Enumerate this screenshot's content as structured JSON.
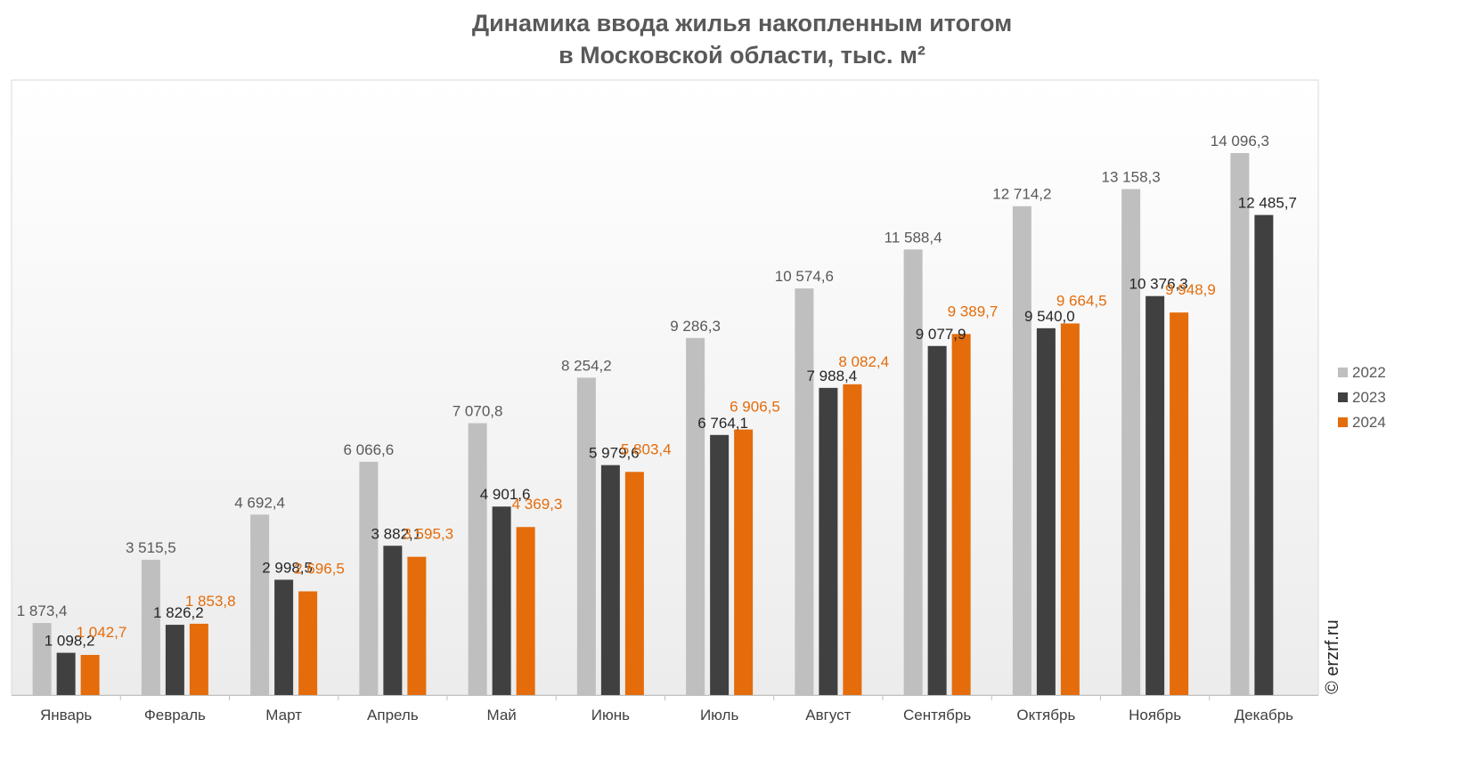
{
  "chart_data": {
    "type": "bar",
    "title_line1": "Динамика ввода жилья накопленным итогом",
    "title_line2": "в Московской области, тыс. м²",
    "categories": [
      "Январь",
      "Февраль",
      "Март",
      "Апрель",
      "Май",
      "Июнь",
      "Июль",
      "Август",
      "Сентябрь",
      "Октябрь",
      "Ноябрь",
      "Декабрь"
    ],
    "series": [
      {
        "name": "2022",
        "color": "#bfbfbf",
        "label_color": "#595959",
        "values": [
          1873.4,
          3515.5,
          4692.4,
          6066.6,
          7070.8,
          8254.2,
          9286.3,
          10574.6,
          11588.4,
          12714.2,
          13158.3,
          14096.3
        ],
        "labels": [
          "1 873,4",
          "3 515,5",
          "4 692,4",
          "6 066,6",
          "7 070,8",
          "8 254,2",
          "9 286,3",
          "10 574,6",
          "11 588,4",
          "12 714,2",
          "13 158,3",
          "14 096,3"
        ]
      },
      {
        "name": "2023",
        "color": "#404040",
        "label_color": "#262626",
        "values": [
          1098.2,
          1826.2,
          2998.5,
          3882.1,
          4901.6,
          5979.6,
          6764.1,
          7988.4,
          9077.9,
          9540.0,
          10376.3,
          12485.7
        ],
        "labels": [
          "1 098,2",
          "1 826,2",
          "2 998,5",
          "3 882,1",
          "4 901,6",
          "5 979,6",
          "6 764,1",
          "7 988,4",
          "9 077,9",
          "9 540,0",
          "10 376,3",
          "12 485,7"
        ]
      },
      {
        "name": "2024",
        "color": "#e46c0a",
        "label_color": "#e46c0a",
        "values": [
          1042.7,
          1853.8,
          2696.5,
          3595.3,
          4369.3,
          5803.4,
          6906.5,
          8082.4,
          9389.7,
          9664.5,
          9948.9,
          null
        ],
        "labels": [
          "1 042,7",
          "1 853,8",
          "2 696,5",
          "3 595,3",
          "4 369,3",
          "5 803,4",
          "6 906,5",
          "8 082,4",
          "9 389,7",
          "9 664,5",
          "9 948,9",
          ""
        ]
      }
    ],
    "ylim": [
      0,
      16000
    ],
    "grid": false,
    "legend_position": "right"
  },
  "watermark": "© erzrf.ru"
}
